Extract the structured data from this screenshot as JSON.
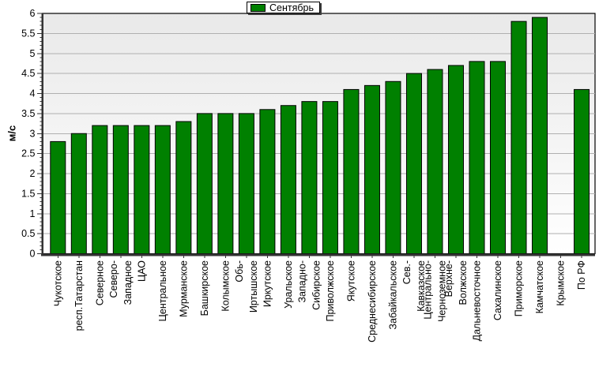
{
  "chart_data": {
    "type": "bar",
    "title": "",
    "xlabel": "",
    "ylabel": "м/с",
    "ylim": [
      0,
      6
    ],
    "ytick_step": 0.5,
    "ytick_labels": [
      "0",
      "0.5",
      "1",
      "1.5",
      "2",
      "2.5",
      "3",
      "3.5",
      "4",
      "4.5",
      "5",
      "5.5",
      "6"
    ],
    "grid": true,
    "legend": {
      "label": "Сентябрь",
      "position": "top-center",
      "color": "#008000"
    },
    "bar_color": "#008000",
    "bar_border_color": "#000000",
    "gridline_color": "#b0b0b0",
    "axis_color": "#333333",
    "plot_bg_top": "#e9e9e9",
    "plot_bg_bottom": "#ffffff",
    "categories": [
      "Чукотское",
      "респ.Татарстан",
      "Северное",
      "Северо-\nЗападное",
      "ЦАО",
      "Центральное",
      "Мурманское",
      "Башкирское",
      "Колымское",
      "Обь-\nИртышское",
      "Иркутское",
      "Уральское",
      "Западно-\nСибирское",
      "Приволжское",
      "Якутское",
      "Среднесибирское",
      "Забайкальское",
      "Сев.-\nКавказское",
      "Центрально-\nЧерноземное",
      "Верхне-\nВолжское",
      "Дальневосточное",
      "Сахалинское",
      "Приморское",
      "Камчатское",
      "Крымское",
      "По РФ"
    ],
    "values": [
      2.8,
      3.0,
      3.2,
      3.2,
      3.2,
      3.2,
      3.3,
      3.5,
      3.5,
      3.5,
      3.6,
      3.7,
      3.8,
      3.8,
      4.1,
      4.2,
      4.3,
      4.5,
      4.6,
      4.7,
      4.8,
      4.8,
      5.8,
      5.9,
      null,
      4.1
    ]
  }
}
